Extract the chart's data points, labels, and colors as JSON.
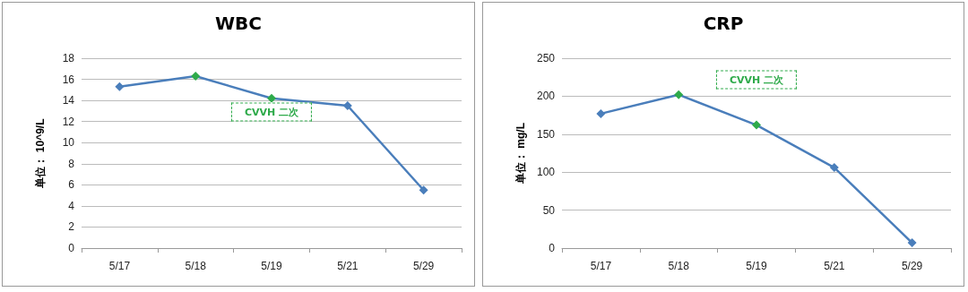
{
  "chart_data": [
    {
      "type": "line",
      "title": "WBC",
      "ylabel": "单位： 10^9/L",
      "categories": [
        "5/17",
        "5/18",
        "5/19",
        "5/21",
        "5/29"
      ],
      "series": [
        {
          "color": "#4a7ebb",
          "colors": [
            "#4a7ebb",
            "#2eaa4a",
            "#2eaa4a",
            "#4a7ebb",
            "#4a7ebb"
          ],
          "values": [
            15.3,
            16.3,
            14.2,
            13.5,
            5.5
          ]
        }
      ],
      "ylim": [
        0,
        18
      ],
      "yticks": [
        0,
        2,
        4,
        6,
        8,
        10,
        12,
        14,
        16,
        18
      ],
      "grid": "y",
      "marker": "diamond",
      "line_style": "solid",
      "annotations": [
        "CVVH 二次"
      ]
    },
    {
      "type": "line",
      "title": "CRP",
      "ylabel": "单位： mg/L",
      "categories": [
        "5/17",
        "5/18",
        "5/19",
        "5/21",
        "5/29"
      ],
      "series": [
        {
          "color": "#4a7ebb",
          "colors": [
            "#4a7ebb",
            "#2eaa4a",
            "#2eaa4a",
            "#4a7ebb",
            "#4a7ebb"
          ],
          "values": [
            177,
            202,
            162,
            106,
            7
          ]
        }
      ],
      "ylim": [
        0,
        250
      ],
      "yticks": [
        0,
        50,
        100,
        150,
        200,
        250
      ],
      "grid": "y",
      "marker": "diamond",
      "line_style": "solid",
      "annotations": [
        "CVVH 二次"
      ]
    }
  ]
}
